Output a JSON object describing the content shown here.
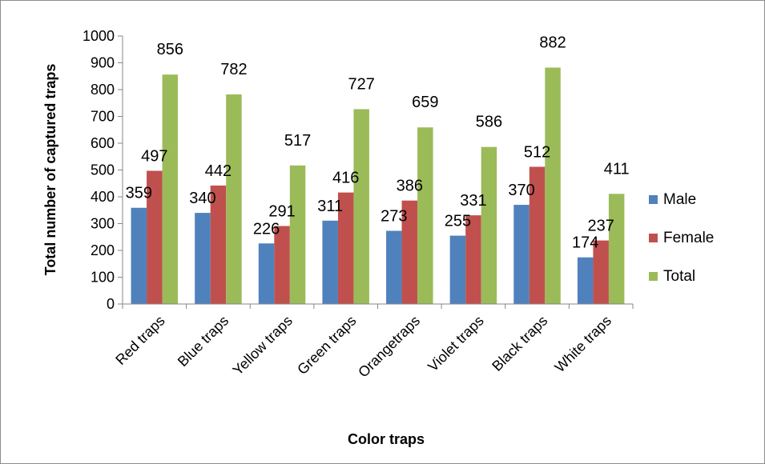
{
  "chart_data": {
    "type": "bar",
    "title": "",
    "xlabel": "Color traps",
    "ylabel": "Total number of captured traps",
    "ylim": [
      0,
      1000
    ],
    "yticks": [
      0,
      100,
      200,
      300,
      400,
      500,
      600,
      700,
      800,
      900,
      1000
    ],
    "grid": false,
    "legend_position": "right",
    "categories": [
      "Red  traps",
      "Blue traps",
      "Yellow  traps",
      "Green traps",
      "Orangetraps",
      "Violet traps",
      "Black traps",
      "White traps"
    ],
    "series": [
      {
        "name": "Male",
        "color": "#4f81bd",
        "values": [
          359,
          340,
          226,
          311,
          273,
          255,
          370,
          174
        ]
      },
      {
        "name": "Female",
        "color": "#c0504d",
        "values": [
          497,
          442,
          291,
          416,
          386,
          331,
          512,
          237
        ]
      },
      {
        "name": "Total",
        "color": "#9bbb59",
        "values": [
          856,
          782,
          517,
          727,
          659,
          586,
          882,
          411
        ]
      }
    ]
  }
}
